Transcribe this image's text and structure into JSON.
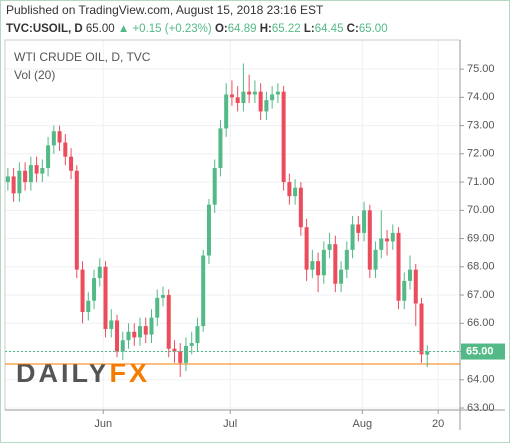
{
  "header": {
    "published": "Published on TradingView.com, August 15, 2018 23:16 EST",
    "symbol": "TVC:USOIL, D",
    "last": "65.00",
    "arrow": "▲",
    "change": "+0.15 (+0.23%)",
    "open_label": "O:",
    "open": "64.89",
    "high_label": "H:",
    "high": "65.22",
    "low_label": "L:",
    "low": "64.45",
    "close_label": "C:",
    "close": "65.00"
  },
  "chart_data": {
    "type": "candlestick",
    "legend": [
      "WTI CRUDE OIL, D, TVC",
      "Vol (20)"
    ],
    "watermark": [
      "DAILY",
      "FX"
    ],
    "up_color": "#53b987",
    "down_color": "#eb4d5c",
    "grid": true,
    "x": [
      0,
      1,
      2,
      3,
      4,
      5,
      6,
      7,
      8,
      9,
      10,
      11,
      12,
      13,
      14,
      15,
      16,
      17,
      18,
      19,
      20,
      21,
      22,
      23,
      24,
      25,
      26,
      27,
      28,
      29,
      30,
      31,
      32,
      33,
      34,
      35,
      36,
      37,
      38,
      39,
      40,
      41,
      42,
      43,
      44,
      45,
      46,
      47,
      48,
      49,
      50,
      51,
      52,
      53,
      54,
      55,
      56,
      57,
      58,
      59,
      60,
      61,
      62,
      63,
      64,
      65,
      66,
      67,
      68,
      69,
      70,
      71,
      72,
      73
    ],
    "open": [
      71.0,
      71.2,
      70.6,
      71.4,
      71.0,
      71.6,
      71.3,
      71.5,
      72.3,
      72.8,
      72.4,
      71.9,
      71.4,
      67.9,
      66.4,
      66.8,
      67.6,
      68.0,
      65.8,
      66.1,
      65.0,
      65.4,
      65.7,
      65.5,
      65.9,
      65.6,
      66.2,
      66.9,
      67.0,
      65.1,
      65.0,
      64.6,
      65.2,
      65.3,
      65.9,
      68.4,
      70.2,
      71.5,
      72.9,
      74.1,
      74.0,
      73.8,
      74.2,
      74.1,
      74.2,
      73.5,
      73.9,
      74.1,
      74.2,
      71.0,
      70.5,
      70.8,
      69.4,
      67.9,
      68.2,
      67.7,
      68.6,
      68.8,
      67.4,
      67.9,
      68.6,
      69.5,
      69.2,
      70.0,
      67.9,
      68.6,
      69.0,
      68.9,
      69.2,
      66.8,
      67.5,
      67.9,
      66.7,
      64.89
    ],
    "high": [
      71.5,
      71.5,
      71.7,
      71.7,
      71.9,
      71.9,
      71.8,
      72.6,
      73.0,
      73.0,
      72.7,
      72.2,
      71.6,
      68.2,
      67.1,
      67.9,
      68.3,
      68.2,
      66.5,
      66.3,
      65.7,
      66.0,
      66.0,
      66.2,
      66.2,
      66.5,
      67.2,
      67.3,
      67.2,
      65.4,
      65.3,
      65.5,
      65.7,
      66.2,
      68.6,
      70.4,
      71.8,
      73.2,
      74.5,
      74.6,
      74.4,
      75.2,
      74.8,
      74.6,
      74.5,
      74.2,
      74.4,
      74.5,
      74.4,
      71.3,
      71.1,
      71.0,
      69.7,
      68.6,
      68.5,
      68.9,
      69.2,
      69.1,
      68.2,
      68.9,
      69.8,
      69.8,
      70.3,
      70.2,
      68.9,
      70.0,
      69.3,
      69.5,
      69.4,
      67.8,
      68.4,
      68.1,
      66.9,
      65.22
    ],
    "low": [
      70.7,
      70.3,
      70.3,
      70.7,
      70.7,
      71.0,
      71.0,
      71.2,
      72.0,
      72.1,
      71.6,
      71.1,
      67.6,
      66.0,
      66.1,
      66.5,
      67.3,
      65.5,
      65.5,
      64.8,
      64.7,
      65.1,
      65.2,
      65.2,
      65.3,
      65.3,
      65.9,
      66.6,
      64.8,
      64.6,
      64.1,
      64.3,
      64.9,
      65.0,
      65.7,
      68.1,
      69.9,
      71.2,
      72.6,
      73.7,
      73.5,
      73.5,
      73.8,
      73.8,
      73.2,
      73.2,
      73.6,
      73.8,
      70.7,
      70.2,
      70.2,
      69.1,
      67.5,
      67.6,
      67.1,
      67.4,
      68.3,
      67.1,
      67.1,
      67.6,
      68.3,
      68.9,
      68.9,
      67.6,
      67.6,
      68.3,
      68.4,
      68.6,
      66.5,
      66.5,
      67.2,
      65.9,
      64.6,
      64.45
    ],
    "close": [
      71.2,
      70.6,
      71.4,
      71.0,
      71.6,
      71.3,
      71.5,
      72.3,
      72.8,
      72.4,
      71.9,
      71.4,
      67.9,
      66.4,
      66.8,
      67.6,
      68.0,
      65.8,
      66.1,
      65.0,
      65.4,
      65.7,
      65.5,
      65.9,
      65.6,
      66.2,
      66.9,
      67.0,
      65.1,
      65.0,
      64.6,
      65.2,
      65.3,
      65.9,
      68.4,
      70.2,
      71.5,
      72.9,
      74.1,
      74.0,
      73.8,
      74.2,
      74.1,
      74.2,
      73.5,
      73.9,
      74.1,
      74.2,
      71.0,
      70.5,
      70.8,
      69.4,
      67.9,
      68.2,
      67.7,
      68.6,
      68.8,
      67.4,
      67.9,
      68.6,
      69.5,
      69.2,
      70.0,
      67.9,
      68.6,
      69.0,
      68.9,
      69.2,
      66.8,
      67.5,
      67.9,
      66.7,
      64.9,
      65.0
    ],
    "xlim": [
      -0.5,
      78.7
    ],
    "xticks": [
      {
        "value": 16.6,
        "label": "Jun"
      },
      {
        "value": 38.7,
        "label": "Jul"
      },
      {
        "value": 61.7,
        "label": "Aug"
      },
      {
        "value": 74.9,
        "label": "20"
      }
    ],
    "ylim": [
      62.93,
      76.03
    ],
    "yticks": [
      {
        "value": 63,
        "label": "63.00"
      },
      {
        "value": 64,
        "label": "64.00"
      },
      {
        "value": 65,
        "label": "65.00"
      },
      {
        "value": 66,
        "label": "66.00"
      },
      {
        "value": 67,
        "label": "67.00"
      },
      {
        "value": 68,
        "label": "68.00"
      },
      {
        "value": 69,
        "label": "69.00"
      },
      {
        "value": 70,
        "label": "70.00"
      },
      {
        "value": 71,
        "label": "71.00"
      },
      {
        "value": 72,
        "label": "72.00"
      },
      {
        "value": 73,
        "label": "73.00"
      },
      {
        "value": 74,
        "label": "74.00"
      },
      {
        "value": 75,
        "label": "75.00"
      }
    ],
    "last_price": {
      "value": 65,
      "label": "65.00",
      "color": "#53b987"
    },
    "hlines": [
      {
        "value": 64.56,
        "color": "#f57c00"
      }
    ]
  }
}
